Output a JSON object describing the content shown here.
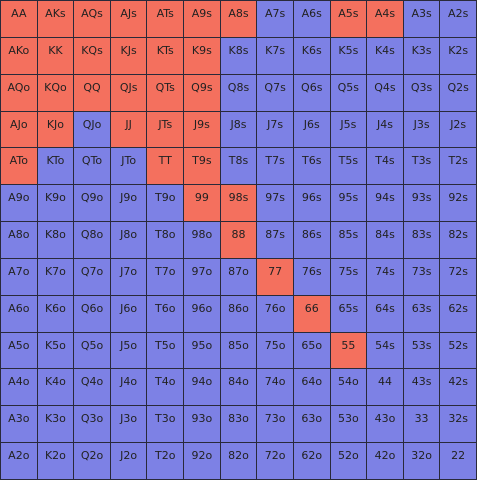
{
  "grid": {
    "rows": [
      [
        "AA",
        "AKs",
        "AQs",
        "AJs",
        "ATs",
        "A9s",
        "A8s",
        "A7s",
        "A6s",
        "A5s",
        "A4s",
        "A3s",
        "A2s"
      ],
      [
        "AKo",
        "KK",
        "KQs",
        "KJs",
        "KTs",
        "K9s",
        "K8s",
        "K7s",
        "K6s",
        "K5s",
        "K4s",
        "K3s",
        "K2s"
      ],
      [
        "AQo",
        "KQo",
        "QQ",
        "QJs",
        "QTs",
        "Q9s",
        "Q8s",
        "Q7s",
        "Q6s",
        "Q5s",
        "Q4s",
        "Q3s",
        "Q2s"
      ],
      [
        "AJo",
        "KJo",
        "QJo",
        "JJ",
        "JTs",
        "J9s",
        "J8s",
        "J7s",
        "J6s",
        "J5s",
        "J4s",
        "J3s",
        "J2s"
      ],
      [
        "ATo",
        "KTo",
        "QTo",
        "JTo",
        "TT",
        "T9s",
        "T8s",
        "T7s",
        "T6s",
        "T5s",
        "T4s",
        "T3s",
        "T2s"
      ],
      [
        "A9o",
        "K9o",
        "Q9o",
        "J9o",
        "T9o",
        "99",
        "98s",
        "97s",
        "96s",
        "95s",
        "94s",
        "93s",
        "92s"
      ],
      [
        "A8o",
        "K8o",
        "Q8o",
        "J8o",
        "T8o",
        "98o",
        "88",
        "87s",
        "86s",
        "85s",
        "84s",
        "83s",
        "82s"
      ],
      [
        "A7o",
        "K7o",
        "Q7o",
        "J7o",
        "T7o",
        "97o",
        "87o",
        "77",
        "76s",
        "75s",
        "74s",
        "73s",
        "72s"
      ],
      [
        "A6o",
        "K6o",
        "Q6o",
        "J6o",
        "T6o",
        "96o",
        "86o",
        "76o",
        "66",
        "65s",
        "64s",
        "63s",
        "62s"
      ],
      [
        "A5o",
        "K5o",
        "Q5o",
        "J5o",
        "T5o",
        "95o",
        "85o",
        "75o",
        "65o",
        "55",
        "54s",
        "53s",
        "52s"
      ],
      [
        "A4o",
        "K4o",
        "Q4o",
        "J4o",
        "T4o",
        "94o",
        "84o",
        "74o",
        "64o",
        "54o",
        "44",
        "43s",
        "42s"
      ],
      [
        "A3o",
        "K3o",
        "Q3o",
        "J3o",
        "T3o",
        "93o",
        "83o",
        "73o",
        "63o",
        "53o",
        "43o",
        "33",
        "32s"
      ],
      [
        "A2o",
        "K2o",
        "Q2o",
        "J2o",
        "T2o",
        "92o",
        "82o",
        "72o",
        "62o",
        "52o",
        "42o",
        "32o",
        "22"
      ]
    ],
    "colors": [
      [
        "#f4705e",
        "#f4705e",
        "#f4705e",
        "#f4705e",
        "#f4705e",
        "#f4705e",
        "#f4705e",
        "#7d81e5",
        "#7d81e5",
        "#f4705e",
        "#f4705e",
        "#7d81e5",
        "#7d81e5"
      ],
      [
        "#f4705e",
        "#f4705e",
        "#f4705e",
        "#f4705e",
        "#f4705e",
        "#f4705e",
        "#7d81e5",
        "#7d81e5",
        "#7d81e5",
        "#7d81e5",
        "#7d81e5",
        "#7d81e5",
        "#7d81e5"
      ],
      [
        "#f4705e",
        "#f4705e",
        "#f4705e",
        "#f4705e",
        "#f4705e",
        "#f4705e",
        "#7d81e5",
        "#7d81e5",
        "#7d81e5",
        "#7d81e5",
        "#7d81e5",
        "#7d81e5",
        "#7d81e5"
      ],
      [
        "#f4705e",
        "#f4705e",
        "#7d81e5",
        "#f4705e",
        "#f4705e",
        "#f4705e",
        "#7d81e5",
        "#7d81e5",
        "#7d81e5",
        "#7d81e5",
        "#7d81e5",
        "#7d81e5",
        "#7d81e5"
      ],
      [
        "#f4705e",
        "#7d81e5",
        "#7d81e5",
        "#7d81e5",
        "#f4705e",
        "#f4705e",
        "#7d81e5",
        "#7d81e5",
        "#7d81e5",
        "#7d81e5",
        "#7d81e5",
        "#7d81e5",
        "#7d81e5"
      ],
      [
        "#7d81e5",
        "#7d81e5",
        "#7d81e5",
        "#7d81e5",
        "#7d81e5",
        "#f4705e",
        "#f4705e",
        "#7d81e5",
        "#7d81e5",
        "#7d81e5",
        "#7d81e5",
        "#7d81e5",
        "#7d81e5"
      ],
      [
        "#7d81e5",
        "#7d81e5",
        "#7d81e5",
        "#7d81e5",
        "#7d81e5",
        "#7d81e5",
        "#f4705e",
        "#7d81e5",
        "#7d81e5",
        "#7d81e5",
        "#7d81e5",
        "#7d81e5",
        "#7d81e5"
      ],
      [
        "#7d81e5",
        "#7d81e5",
        "#7d81e5",
        "#7d81e5",
        "#7d81e5",
        "#7d81e5",
        "#7d81e5",
        "#f4705e",
        "#7d81e5",
        "#7d81e5",
        "#7d81e5",
        "#7d81e5",
        "#7d81e5"
      ],
      [
        "#7d81e5",
        "#7d81e5",
        "#7d81e5",
        "#7d81e5",
        "#7d81e5",
        "#7d81e5",
        "#7d81e5",
        "#7d81e5",
        "#f4705e",
        "#7d81e5",
        "#7d81e5",
        "#7d81e5",
        "#7d81e5"
      ],
      [
        "#7d81e5",
        "#7d81e5",
        "#7d81e5",
        "#7d81e5",
        "#7d81e5",
        "#7d81e5",
        "#7d81e5",
        "#7d81e5",
        "#7d81e5",
        "#f4705e",
        "#7d81e5",
        "#7d81e5",
        "#7d81e5"
      ],
      [
        "#7d81e5",
        "#7d81e5",
        "#7d81e5",
        "#7d81e5",
        "#7d81e5",
        "#7d81e5",
        "#7d81e5",
        "#7d81e5",
        "#7d81e5",
        "#7d81e5",
        "#7d81e5",
        "#7d81e5",
        "#7d81e5"
      ],
      [
        "#7d81e5",
        "#7d81e5",
        "#7d81e5",
        "#7d81e5",
        "#7d81e5",
        "#7d81e5",
        "#7d81e5",
        "#7d81e5",
        "#7d81e5",
        "#7d81e5",
        "#7d81e5",
        "#7d81e5",
        "#7d81e5"
      ],
      [
        "#7d81e5",
        "#7d81e5",
        "#7d81e5",
        "#7d81e5",
        "#7d81e5",
        "#7d81e5",
        "#7d81e5",
        "#7d81e5",
        "#7d81e5",
        "#7d81e5",
        "#7d81e5",
        "#7d81e5",
        "#7d81e5"
      ]
    ]
  }
}
